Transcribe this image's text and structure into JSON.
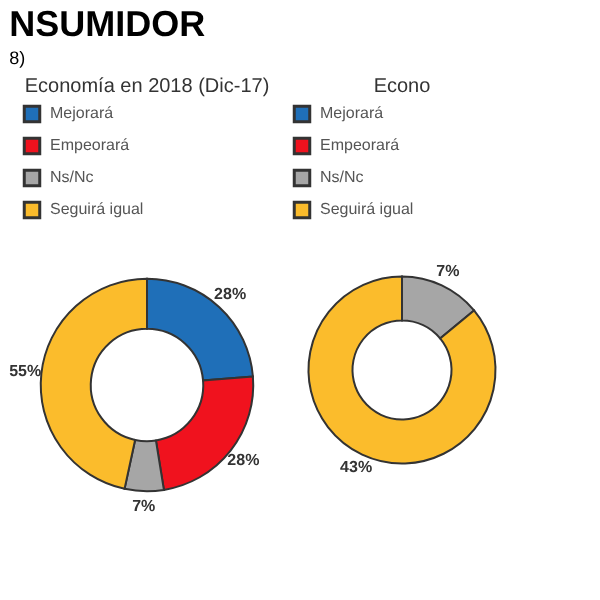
{
  "chart_data": [
    {
      "type": "donut",
      "title": "Economía en 2018 (Dic-17)",
      "annotations": [
        "NSUMIDOR",
        "8)"
      ],
      "categories": [
        "Mejorará",
        "Empeorará",
        "Ns/Nc",
        "Seguirá igual"
      ],
      "values": [
        28,
        28,
        7,
        55
      ],
      "colors": [
        "#1f6fb8",
        "#f0121e",
        "#a6a6a6",
        "#fbbc2c"
      ],
      "value_labels": [
        "28%",
        "28%",
        "7%",
        "55%"
      ],
      "legend": "top left"
    },
    {
      "type": "donut",
      "title": "Econo",
      "categories": [
        "Mejorará",
        "Empeorará",
        "Ns/Nc",
        "Seguirá igual"
      ],
      "values": [
        null,
        null,
        7,
        43
      ],
      "colors": [
        "#1f6fb8",
        "#f0121e",
        "#a6a6a6",
        "#fbbc2c"
      ],
      "value_labels": [
        null,
        null,
        "7%",
        "43%"
      ],
      "legend": "top left"
    }
  ]
}
